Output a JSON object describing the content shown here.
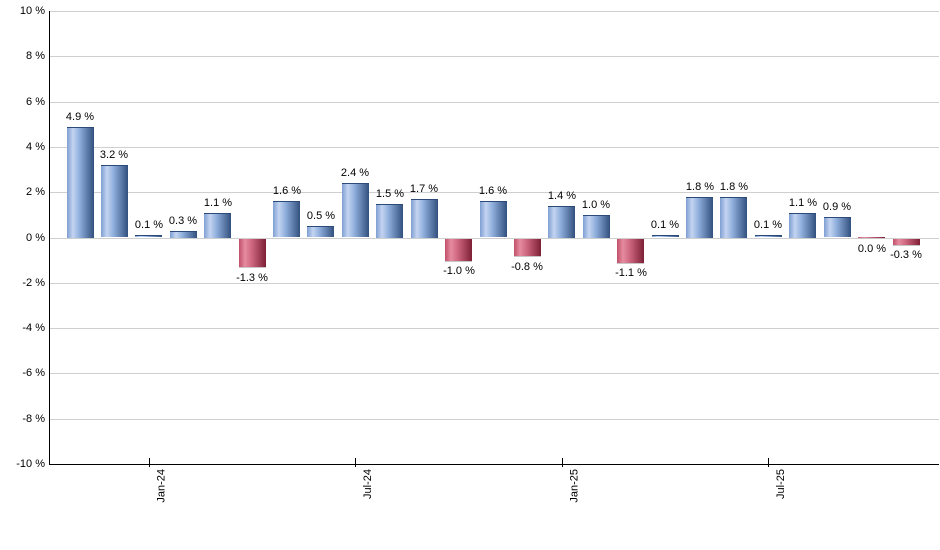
{
  "chart_data": {
    "type": "bar",
    "title": "",
    "description": "Monthly return bar chart; blue bars are positive months, red bars are negative months",
    "unit": "%",
    "y_axis": {
      "min": -10,
      "max": 10,
      "step": 2,
      "ticks": [
        {
          "value": 10,
          "label": "10 %"
        },
        {
          "value": 8,
          "label": "8 %"
        },
        {
          "value": 6,
          "label": "6 %"
        },
        {
          "value": 4,
          "label": "4 %"
        },
        {
          "value": 2,
          "label": "2 %"
        },
        {
          "value": 0,
          "label": "0 %"
        },
        {
          "value": -2,
          "label": "-2 %"
        },
        {
          "value": -4,
          "label": "-4 %"
        },
        {
          "value": -6,
          "label": "-6 %"
        },
        {
          "value": -8,
          "label": "-8 %"
        },
        {
          "value": -10,
          "label": "-10 %"
        }
      ],
      "grid": true
    },
    "x_axis": {
      "ticks": [
        {
          "bar_index": 2,
          "label": "Jan-24"
        },
        {
          "bar_index": 8,
          "label": "Jul-24"
        },
        {
          "bar_index": 14,
          "label": "Jan-25"
        },
        {
          "bar_index": 20,
          "label": "Jul-25"
        }
      ]
    },
    "bars": [
      {
        "value": 4.9,
        "label": "4.9 %",
        "negative": false
      },
      {
        "value": 3.2,
        "label": "3.2 %",
        "negative": false
      },
      {
        "value": 0.1,
        "label": "0.1 %",
        "negative": false
      },
      {
        "value": 0.3,
        "label": "0.3 %",
        "negative": false
      },
      {
        "value": 1.1,
        "label": "1.1 %",
        "negative": false
      },
      {
        "value": -1.3,
        "label": "-1.3 %",
        "negative": true
      },
      {
        "value": 1.6,
        "label": "1.6 %",
        "negative": false
      },
      {
        "value": 0.5,
        "label": "0.5 %",
        "negative": false
      },
      {
        "value": 2.4,
        "label": "2.4 %",
        "negative": false
      },
      {
        "value": 1.5,
        "label": "1.5 %",
        "negative": false
      },
      {
        "value": 1.7,
        "label": "1.7 %",
        "negative": false
      },
      {
        "value": -1.0,
        "label": "-1.0 %",
        "negative": true
      },
      {
        "value": 1.6,
        "label": "1.6 %",
        "negative": false
      },
      {
        "value": -0.8,
        "label": "-0.8 %",
        "negative": true
      },
      {
        "value": 1.4,
        "label": "1.4 %",
        "negative": false
      },
      {
        "value": 1.0,
        "label": "1.0 %",
        "negative": false
      },
      {
        "value": -1.1,
        "label": "-1.1 %",
        "negative": true
      },
      {
        "value": 0.1,
        "label": "0.1 %",
        "negative": false
      },
      {
        "value": 1.8,
        "label": "1.8 %",
        "negative": false
      },
      {
        "value": 1.8,
        "label": "1.8 %",
        "negative": false
      },
      {
        "value": 0.1,
        "label": "0.1 %",
        "negative": false
      },
      {
        "value": 1.1,
        "label": "1.1 %",
        "negative": false
      },
      {
        "value": 0.9,
        "label": "0.9 %",
        "negative": false
      },
      {
        "value": 0.0,
        "label": "0.0 %",
        "negative": true
      },
      {
        "value": -0.3,
        "label": "-0.3 %",
        "negative": true
      }
    ],
    "colors": {
      "positive_edge_left": "#7e9ed2",
      "positive_highlight": "#c3d4f0",
      "positive_mid": "#93b1de",
      "positive_dark_right": "#31507e",
      "negative_edge_left": "#c05069",
      "negative_highlight": "#e58ba0",
      "negative_mid": "#d06a82",
      "negative_dark_right": "#7e1f36",
      "gridline": "#cfcfcf",
      "axis": "#000000",
      "label_text": "#000000",
      "background": "#ffffff"
    },
    "legend": null
  }
}
